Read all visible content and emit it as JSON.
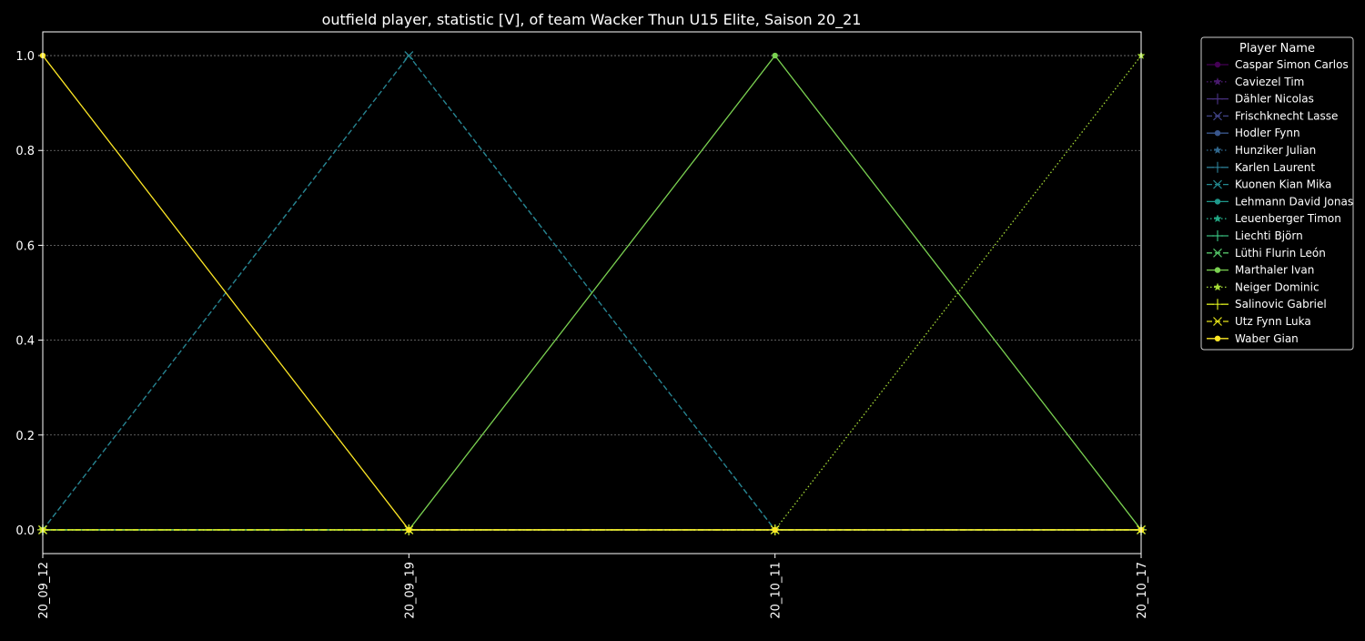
{
  "chart_data": {
    "type": "line",
    "title": "outfield player, statistic [V], of team Wacker Thun U15 Elite, Saison 20_21",
    "xlabel": "",
    "ylabel": "",
    "categories": [
      "20_09_12",
      "20_09_19",
      "20_10_11",
      "20_10_17"
    ],
    "ylim": [
      -0.05,
      1.05
    ],
    "yticks": [
      "0.0",
      "0.2",
      "0.4",
      "0.6",
      "0.8",
      "1.0"
    ],
    "ytick_values": [
      0.0,
      0.2,
      0.4,
      0.6,
      0.8,
      1.0
    ],
    "grid": true,
    "legend_title": "Player Name",
    "legend_position": "outside top-right",
    "series": [
      {
        "name": "Caspar Simon Carlos",
        "values": [
          0,
          0,
          0,
          0
        ],
        "color": "#440154",
        "marker": "circle",
        "dash": "solid"
      },
      {
        "name": "Caviezel Tim",
        "values": [
          0,
          0,
          0,
          0
        ],
        "color": "#481a6c",
        "marker": "star",
        "dash": "dotted"
      },
      {
        "name": "Dähler Nicolas",
        "values": [
          0,
          0,
          0,
          0
        ],
        "color": "#472f7d",
        "marker": "plus",
        "dash": "dashdot"
      },
      {
        "name": "Frischknecht Lasse",
        "values": [
          0,
          1,
          0,
          0
        ],
        "color": "#414487",
        "marker": "x",
        "dash": "dashed"
      },
      {
        "name": "Hodler Fynn",
        "values": [
          0,
          0,
          0,
          0
        ],
        "color": "#39568c",
        "marker": "circle",
        "dash": "solid"
      },
      {
        "name": "Hunziker Julian",
        "values": [
          0,
          0,
          0,
          0
        ],
        "color": "#31688e",
        "marker": "star",
        "dash": "dotted"
      },
      {
        "name": "Karlen Laurent",
        "values": [
          0,
          0,
          0,
          0
        ],
        "color": "#2a788e",
        "marker": "plus",
        "dash": "dashdot"
      },
      {
        "name": "Kuonen Kian Mika",
        "values": [
          0,
          1,
          0,
          0
        ],
        "color": "#23888e",
        "marker": "x",
        "dash": "dashed"
      },
      {
        "name": "Lehmann David Jonas",
        "values": [
          0,
          0,
          0,
          0
        ],
        "color": "#1f988b",
        "marker": "circle",
        "dash": "solid"
      },
      {
        "name": "Leuenberger Timon",
        "values": [
          0,
          0,
          0,
          0
        ],
        "color": "#22a884",
        "marker": "star",
        "dash": "dotted"
      },
      {
        "name": "Liechti Björn",
        "values": [
          0,
          0,
          0,
          0
        ],
        "color": "#35b779",
        "marker": "plus",
        "dash": "dashdot"
      },
      {
        "name": "Lüthi Flurin León",
        "values": [
          0,
          0,
          0,
          0
        ],
        "color": "#54c568",
        "marker": "x",
        "dash": "dashed"
      },
      {
        "name": "Marthaler Ivan",
        "values": [
          0,
          0,
          1,
          0
        ],
        "color": "#7ad151",
        "marker": "circle",
        "dash": "solid"
      },
      {
        "name": "Neiger Dominic",
        "values": [
          0,
          0,
          0,
          1
        ],
        "color": "#a5db36",
        "marker": "star",
        "dash": "dotted"
      },
      {
        "name": "Salinovic Gabriel",
        "values": [
          0,
          0,
          0,
          0
        ],
        "color": "#d2e21b",
        "marker": "plus",
        "dash": "dashdot"
      },
      {
        "name": "Utz Fynn Luka",
        "values": [
          0,
          0,
          0,
          0
        ],
        "color": "#e5e419",
        "marker": "x",
        "dash": "dashed"
      },
      {
        "name": "Waber Gian",
        "values": [
          1,
          0,
          0,
          0
        ],
        "color": "#fde725",
        "marker": "circle",
        "dash": "solid"
      }
    ]
  }
}
